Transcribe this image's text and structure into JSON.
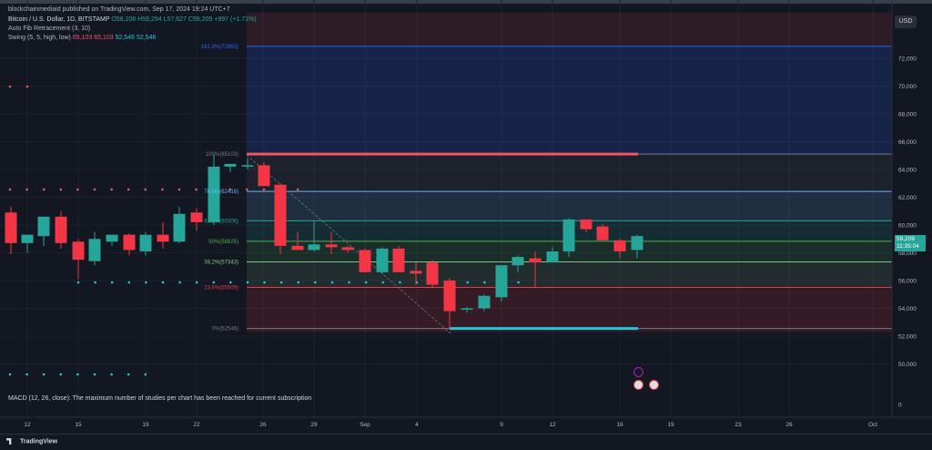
{
  "header": {
    "publish_text": "blockchainmediaid published on TradingView.com, Sep 17, 2024 19:24 UTC+7"
  },
  "legend": {
    "symbol": "Bitcoin / U.S. Dollar, 1D, BITSTAMP",
    "open": "O58,208",
    "high": "H59,294",
    "low": "L57,627",
    "close": "C59,209",
    "change": "+997 (+1.71%)",
    "fib_title": "Auto Fib Retracement (3, 10)",
    "swing_title": "Swing (5, 5, high, low)",
    "swing_v1": "65,103",
    "swing_v2": "65,103",
    "swing_v3": "52,546",
    "swing_v4": "52,546"
  },
  "price_axis": {
    "currency": "USD",
    "ticks": [
      "72,000",
      "70,000",
      "68,000",
      "66,000",
      "64,000",
      "62,000",
      "60,000",
      "58,000",
      "56,000",
      "54,000",
      "52,000",
      "50,000",
      "0"
    ],
    "current_price": "59,209",
    "countdown": "11:35:04"
  },
  "time_axis": {
    "ticks": [
      "12",
      "15",
      "19",
      "22",
      "26",
      "29",
      "Sep",
      "4",
      "9",
      "12",
      "16",
      "19",
      "23",
      "26",
      "Oct"
    ]
  },
  "fib_levels": [
    {
      "label": "161.8%(72863)",
      "price": 72863,
      "color": "#2962ff"
    },
    {
      "label": "100%(65103)",
      "price": 65103,
      "color": "#787b86"
    },
    {
      "label": "78.6%(62416)",
      "price": 62416,
      "color": "#64b5f6"
    },
    {
      "label": "61.8%(60306)",
      "price": 60306,
      "color": "#26a69a"
    },
    {
      "label": "50%(58825)",
      "price": 58825,
      "color": "#4caf50"
    },
    {
      "label": "38.2%(57343)",
      "price": 57343,
      "color": "#81c784"
    },
    {
      "label": "23.6%(55509)",
      "price": 55509,
      "color": "#f23645"
    },
    {
      "label": "0%(52546)",
      "price": 52546,
      "color": "#787b86"
    }
  ],
  "macd_text": "MACD (12, 26, close): The maximum number of studies per chart has been reached for current subscription",
  "footer": {
    "brand": "TradingView"
  },
  "colors": {
    "up": "#26a69a",
    "down": "#f23645",
    "bg": "#131722"
  }
}
